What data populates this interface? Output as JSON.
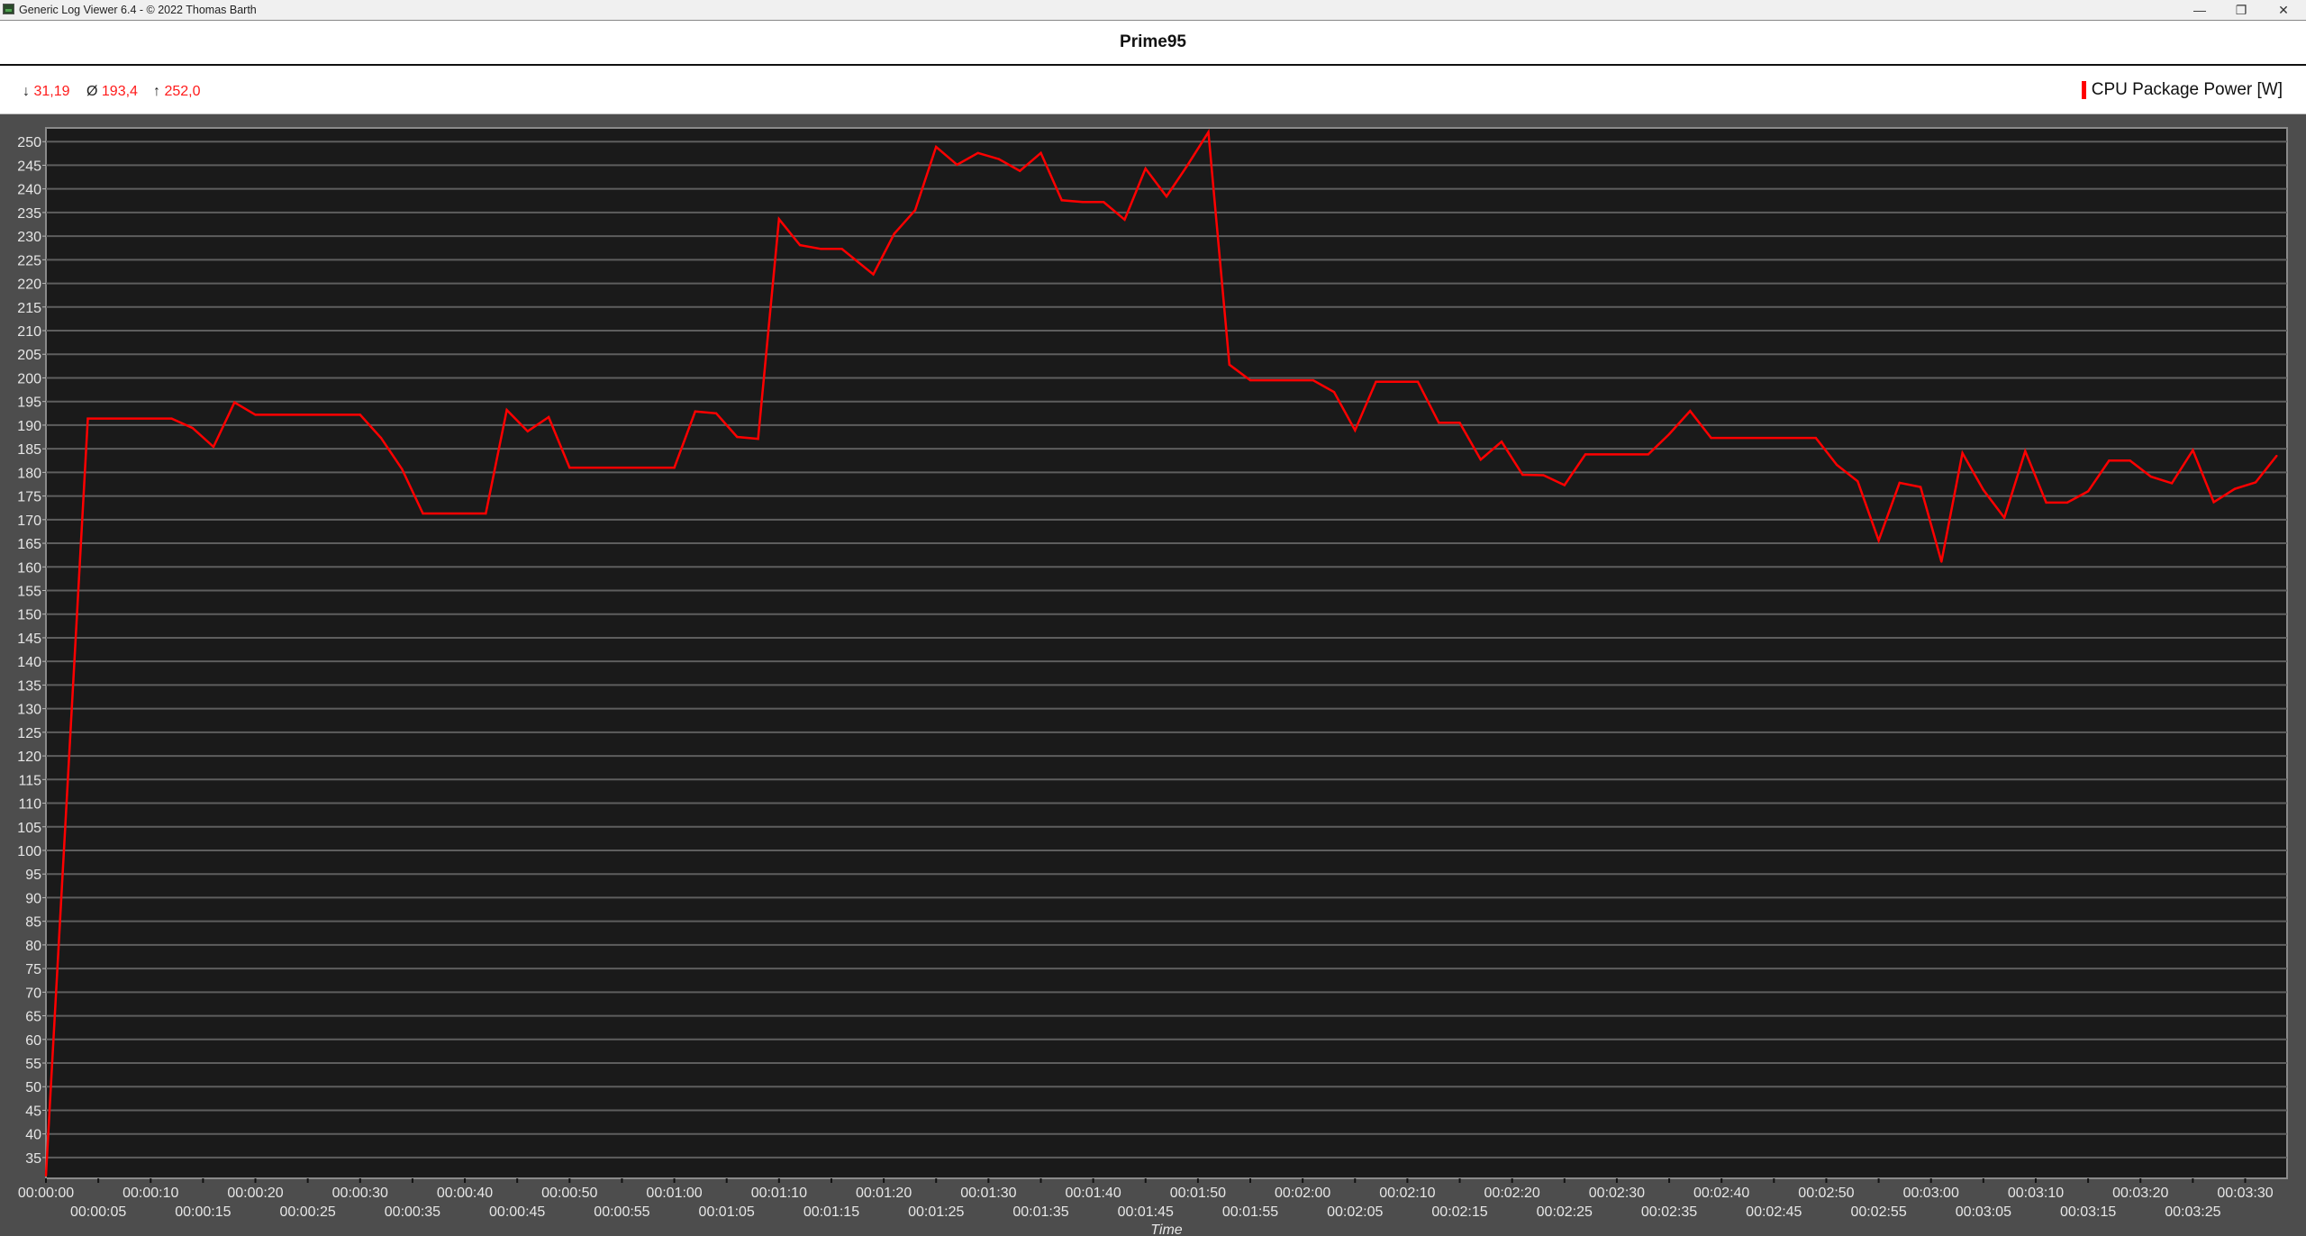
{
  "window": {
    "title": "Generic Log Viewer 6.4 - © 2022 Thomas Barth",
    "controls": [
      "minimize-icon",
      "restore-icon",
      "close-icon"
    ]
  },
  "stats": {
    "min_symbol": "↓",
    "min": "31,19",
    "avg_symbol": "Ø",
    "avg": "193,4",
    "max_symbol": "↑",
    "max": "252,0"
  },
  "colors": {
    "series": "#ff0000",
    "plot_bg": "#1a1a1a",
    "frame_bg": "#4d4d4d",
    "stat_value": "#ff1a1a"
  },
  "chart_data": {
    "type": "line",
    "title": "Prime95",
    "xlabel": "Time",
    "ylabel": "",
    "legend_placement": "top-right",
    "grid": true,
    "xlim": [
      "00:00:00",
      "00:03:34"
    ],
    "ylim": [
      30.6,
      252.9
    ],
    "y_ticks": [
      35,
      40,
      45,
      50,
      55,
      60,
      65,
      70,
      75,
      80,
      85,
      90,
      95,
      100,
      105,
      110,
      115,
      120,
      125,
      130,
      135,
      140,
      145,
      150,
      155,
      160,
      165,
      170,
      175,
      180,
      185,
      190,
      195,
      200,
      205,
      210,
      215,
      220,
      225,
      230,
      235,
      240,
      245,
      250
    ],
    "x_ticks": [
      "00:00:00",
      "00:00:05",
      "00:00:10",
      "00:00:15",
      "00:00:20",
      "00:00:25",
      "00:00:30",
      "00:00:35",
      "00:00:40",
      "00:00:45",
      "00:00:50",
      "00:00:55",
      "00:01:00",
      "00:01:05",
      "00:01:10",
      "00:01:15",
      "00:01:20",
      "00:01:25",
      "00:01:30",
      "00:01:35",
      "00:01:40",
      "00:01:45",
      "00:01:50",
      "00:01:55",
      "00:02:00",
      "00:02:05",
      "00:02:10",
      "00:02:15",
      "00:02:20",
      "00:02:25",
      "00:02:30",
      "00:02:35",
      "00:02:40",
      "00:02:45",
      "00:02:50",
      "00:02:55",
      "00:03:00",
      "00:03:05",
      "00:03:10",
      "00:03:15",
      "00:03:20",
      "00:03:25",
      "00:03:30"
    ],
    "series": [
      {
        "name": "CPU Package Power [W]",
        "color": "#ff0000",
        "x": [
          "00:00:00",
          "00:00:04",
          "00:00:12",
          "00:00:14",
          "00:00:16",
          "00:00:18",
          "00:00:20",
          "00:00:30",
          "00:00:32",
          "00:00:34",
          "00:00:36",
          "00:00:42",
          "00:00:44",
          "00:00:46",
          "00:00:48",
          "00:00:50",
          "00:01:00",
          "00:01:02",
          "00:01:04",
          "00:01:06",
          "00:01:08",
          "00:01:10",
          "00:01:12",
          "00:01:14",
          "00:01:16",
          "00:01:19",
          "00:01:21",
          "00:01:23",
          "00:01:25",
          "00:01:27",
          "00:01:29",
          "00:01:31",
          "00:01:33",
          "00:01:35",
          "00:01:37",
          "00:01:39",
          "00:01:41",
          "00:01:43",
          "00:01:45",
          "00:01:47",
          "00:01:49",
          "00:01:51",
          "00:01:53",
          "00:01:55",
          "00:02:01",
          "00:02:03",
          "00:02:05",
          "00:02:07",
          "00:02:11",
          "00:02:13",
          "00:02:15",
          "00:02:17",
          "00:02:19",
          "00:02:21",
          "00:02:23",
          "00:02:25",
          "00:02:27",
          "00:02:33",
          "00:02:35",
          "00:02:37",
          "00:02:39",
          "00:02:49",
          "00:02:51",
          "00:02:53",
          "00:02:55",
          "00:02:57",
          "00:02:59",
          "00:03:01",
          "00:03:03",
          "00:03:05",
          "00:03:07",
          "00:03:09",
          "00:03:11",
          "00:03:13",
          "00:03:15",
          "00:03:17",
          "00:03:19",
          "00:03:21",
          "00:03:23",
          "00:03:25",
          "00:03:27",
          "00:03:29",
          "00:03:31",
          "00:03:33"
        ],
        "values": [
          31.19,
          191.4,
          191.4,
          189.4,
          185.4,
          194.8,
          192.2,
          192.2,
          187.3,
          180.7,
          171.3,
          171.3,
          193.2,
          188.7,
          191.7,
          181.0,
          181.0,
          192.9,
          192.5,
          187.5,
          187.1,
          233.6,
          228.1,
          227.3,
          227.3,
          221.9,
          230.5,
          235.5,
          248.9,
          245.1,
          247.6,
          246.3,
          243.8,
          247.6,
          237.6,
          237.2,
          237.2,
          233.5,
          244.3,
          238.4,
          245.0,
          252.0,
          202.8,
          199.5,
          199.5,
          197.0,
          188.9,
          199.2,
          199.2,
          190.5,
          190.5,
          182.7,
          186.5,
          179.5,
          179.4,
          177.3,
          183.8,
          183.8,
          188.1,
          193.0,
          187.3,
          187.3,
          181.6,
          178.1,
          165.6,
          177.8,
          176.9,
          161.1,
          184.1,
          176.3,
          170.4,
          184.5,
          173.6,
          173.6,
          176.0,
          182.5,
          182.5,
          179.1,
          177.7,
          184.7,
          173.7,
          176.5,
          177.9,
          183.5
        ]
      }
    ]
  }
}
